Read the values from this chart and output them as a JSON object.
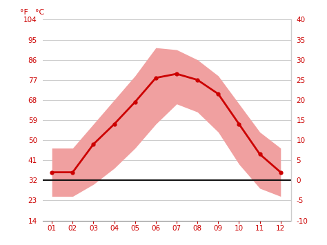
{
  "months": [
    1,
    2,
    3,
    4,
    5,
    6,
    7,
    8,
    9,
    10,
    11,
    12
  ],
  "month_labels": [
    "01",
    "02",
    "03",
    "04",
    "05",
    "06",
    "07",
    "08",
    "09",
    "10",
    "11",
    "12"
  ],
  "avg_temp_c": [
    2.0,
    2.0,
    9.0,
    14.0,
    19.5,
    25.5,
    26.5,
    25.0,
    21.5,
    14.0,
    6.5,
    2.0
  ],
  "max_temp_c": [
    8.0,
    8.0,
    14.0,
    20.0,
    26.0,
    33.0,
    32.5,
    30.0,
    26.0,
    19.0,
    12.0,
    8.0
  ],
  "min_temp_c": [
    -4.0,
    -4.0,
    -1.0,
    3.0,
    8.0,
    14.0,
    19.0,
    17.0,
    12.0,
    4.0,
    -2.0,
    -4.0
  ],
  "ylim_c": [
    -10,
    40
  ],
  "yticks_c": [
    -10,
    -5,
    0,
    5,
    10,
    15,
    20,
    25,
    30,
    35,
    40
  ],
  "yticks_f": [
    14,
    23,
    32,
    41,
    50,
    59,
    68,
    77,
    86,
    95,
    104
  ],
  "line_color": "#cc0000",
  "fill_color": "#f0a0a0",
  "zero_line_color": "#111111",
  "grid_color": "#cccccc",
  "axis_label_color": "#cc0000",
  "background_color": "#ffffff",
  "fahrenheit_label": "°F",
  "celsius_label": "°C"
}
